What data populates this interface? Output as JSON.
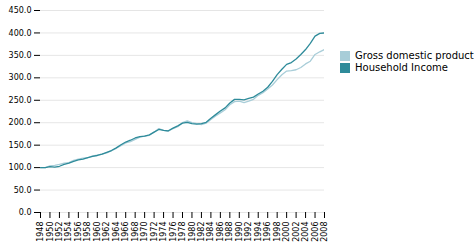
{
  "chart_data": {
    "type": "line",
    "x": [
      1948,
      1949,
      1950,
      1951,
      1952,
      1953,
      1954,
      1955,
      1956,
      1957,
      1958,
      1959,
      1960,
      1961,
      1962,
      1963,
      1964,
      1965,
      1966,
      1967,
      1968,
      1969,
      1970,
      1971,
      1972,
      1973,
      1974,
      1975,
      1976,
      1977,
      1978,
      1979,
      1980,
      1981,
      1982,
      1983,
      1984,
      1985,
      1986,
      1987,
      1988,
      1989,
      1990,
      1991,
      1992,
      1993,
      1994,
      1995,
      1996,
      1997,
      1998,
      1999,
      2000,
      2001,
      2002,
      2003,
      2004,
      2005,
      2006,
      2007,
      2008
    ],
    "series": [
      {
        "name": "Gross domestic product",
        "color": "#a8cdd8",
        "values": [
          100,
          100,
          104,
          105,
          107,
          110,
          111,
          116,
          119,
          121,
          122,
          126,
          128,
          130,
          133,
          138,
          143,
          149,
          155,
          158,
          163,
          168,
          170,
          172,
          179,
          187,
          183,
          181,
          187,
          191,
          200,
          204,
          200,
          198,
          196,
          199,
          207,
          215,
          222,
          229,
          240,
          247,
          248,
          245,
          248,
          252,
          261,
          267,
          275,
          284,
          296,
          307,
          315,
          316,
          318,
          323,
          331,
          337,
          352,
          358,
          363
        ]
      },
      {
        "name": "Household Income",
        "color": "#2e8b9a",
        "values": [
          100,
          100,
          102,
          101,
          103,
          107,
          110,
          114,
          117,
          119,
          122,
          125,
          127,
          130,
          134,
          138,
          144,
          151,
          157,
          161,
          166,
          169,
          170,
          173,
          179,
          185,
          183,
          182,
          188,
          193,
          199,
          201,
          198,
          197,
          198,
          201,
          210,
          218,
          226,
          233,
          244,
          252,
          252,
          251,
          254,
          257,
          264,
          270,
          279,
          292,
          307,
          319,
          330,
          334,
          342,
          352,
          363,
          377,
          393,
          399,
          400
        ]
      }
    ],
    "xlim": [
      1948,
      2008
    ],
    "xticks": [
      1948,
      1950,
      1952,
      1954,
      1956,
      1958,
      1960,
      1962,
      1964,
      1966,
      1968,
      1970,
      1972,
      1974,
      1976,
      1978,
      1980,
      1982,
      1984,
      1986,
      1988,
      1990,
      1992,
      1994,
      1996,
      1998,
      2000,
      2002,
      2004,
      2006,
      2008
    ],
    "ylim": [
      0,
      450
    ],
    "yticks": [
      {
        "value": 0,
        "label": "0.0"
      },
      {
        "value": 50,
        "label": "50.0"
      },
      {
        "value": 100,
        "label": "100.0"
      },
      {
        "value": 150,
        "label": "150.0"
      },
      {
        "value": 200,
        "label": "200.0"
      },
      {
        "value": 250,
        "label": "250.0"
      },
      {
        "value": 300,
        "label": "300.0"
      },
      {
        "value": 350,
        "label": "350.0"
      },
      {
        "value": 400,
        "label": "400.0"
      },
      {
        "value": 450,
        "label": "450.0"
      }
    ],
    "grid": true,
    "legend": "right"
  }
}
